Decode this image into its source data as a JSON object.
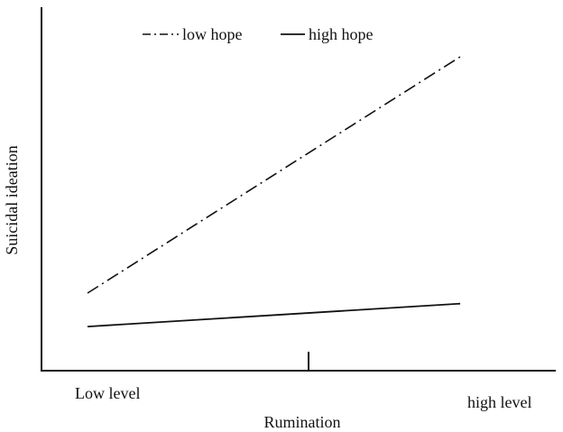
{
  "chart_data": {
    "type": "line",
    "xlabel": "Rumination",
    "ylabel": "Suicidal ideation",
    "categories": [
      "Low level",
      "high level"
    ],
    "series": [
      {
        "name": "low hope",
        "style": "dash-dot",
        "values": [
          2.2,
          8.9
        ]
      },
      {
        "name": "high hope",
        "style": "solid",
        "values": [
          1.25,
          1.9
        ]
      }
    ],
    "ylim": [
      0,
      10
    ],
    "grid": false,
    "legend": "top",
    "color": "#111111"
  }
}
